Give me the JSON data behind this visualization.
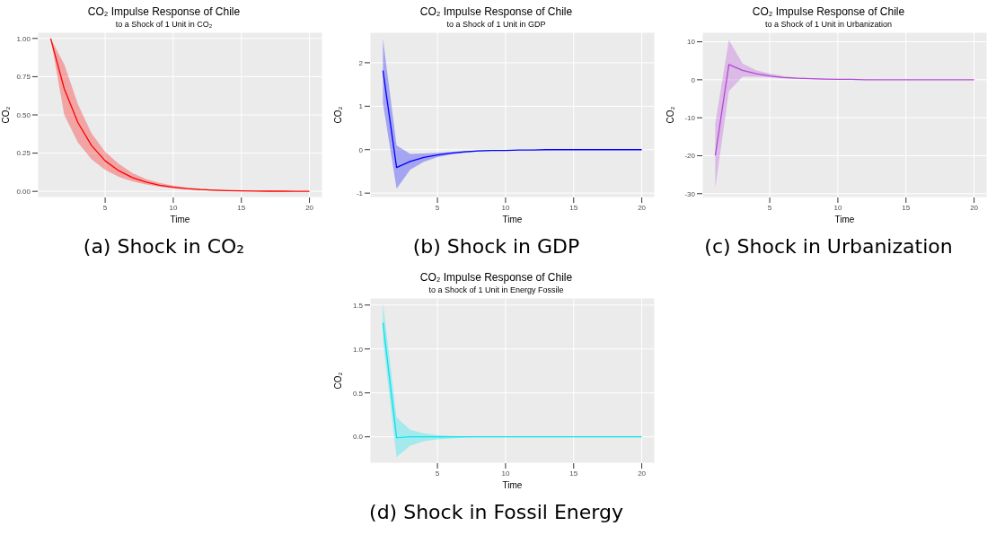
{
  "chart_data": [
    {
      "type": "line",
      "title": "CO₂ Impulse Response of Chile",
      "subtitle": "to a Shock of 1 Unit in CO₂",
      "xlabel": "Time",
      "ylabel": "CO₂",
      "annotations": [
        "(a) Shock in CO₂"
      ],
      "grid": true,
      "xlim": [
        0.05,
        20.95
      ],
      "xticks": [
        5,
        10,
        15,
        20
      ],
      "ylim": [
        -0.04,
        1.04
      ],
      "yticks": [
        {
          "value": 0,
          "label": "0.00"
        },
        {
          "value": 0.25,
          "label": "0.25"
        },
        {
          "value": 0.5,
          "label": "0.50"
        },
        {
          "value": 0.75,
          "label": "0.75"
        },
        {
          "value": 1,
          "label": "1.00"
        }
      ],
      "x": [
        1,
        2,
        3,
        4,
        5,
        6,
        7,
        8,
        9,
        10,
        11,
        12,
        13,
        14,
        15,
        16,
        17,
        18,
        19,
        20
      ],
      "series": [
        {
          "color": "#ff0000",
          "values": [
            1.0,
            0.67,
            0.45,
            0.3,
            0.2,
            0.135,
            0.09,
            0.06,
            0.04,
            0.027,
            0.018,
            0.012,
            0.008,
            0.005,
            0.003,
            0.002,
            0.001,
            0.001,
            0,
            0
          ],
          "lower": [
            1.0,
            0.5,
            0.32,
            0.21,
            0.14,
            0.095,
            0.065,
            0.045,
            0.03,
            0.02,
            0.013,
            0.008,
            0.005,
            0.003,
            0.002,
            0.001,
            0,
            0,
            0,
            0
          ],
          "upper": [
            1.0,
            0.83,
            0.57,
            0.38,
            0.26,
            0.18,
            0.12,
            0.08,
            0.055,
            0.038,
            0.025,
            0.017,
            0.011,
            0.007,
            0.004,
            0.003,
            0.002,
            0.001,
            0,
            0
          ]
        }
      ]
    },
    {
      "type": "line",
      "title": "CO₂ Impulse Response of Chile",
      "subtitle": "to a Shock of 1 Unit in GDP",
      "xlabel": "Time",
      "ylabel": "CO₂",
      "annotations": [
        "(b) Shock in GDP"
      ],
      "grid": true,
      "xlim": [
        0.05,
        20.95
      ],
      "xticks": [
        5,
        10,
        15,
        20
      ],
      "ylim": [
        -1.1,
        2.7
      ],
      "yticks": [
        -1,
        0,
        1,
        2
      ],
      "x": [
        1,
        2,
        3,
        4,
        5,
        6,
        7,
        8,
        9,
        10,
        11,
        12,
        13,
        14,
        15,
        16,
        17,
        18,
        19,
        20
      ],
      "series": [
        {
          "color": "#0000ff",
          "values": [
            1.82,
            -0.41,
            -0.27,
            -0.18,
            -0.12,
            -0.08,
            -0.05,
            -0.03,
            -0.02,
            -0.02,
            -0.01,
            -0.01,
            0,
            0,
            0,
            0,
            0,
            0,
            0,
            0
          ],
          "lower": [
            1.07,
            -0.9,
            -0.46,
            -0.28,
            -0.17,
            -0.11,
            -0.07,
            -0.04,
            -0.025,
            -0.02,
            -0.012,
            -0.008,
            -0.004,
            -0.002,
            0,
            0,
            0,
            0,
            0,
            0
          ],
          "upper": [
            2.55,
            0.1,
            -0.1,
            -0.09,
            -0.07,
            -0.05,
            -0.03,
            -0.02,
            -0.01,
            -0.008,
            -0.005,
            -0.002,
            0,
            0,
            0,
            0,
            0,
            0,
            0,
            0
          ]
        }
      ]
    },
    {
      "type": "line",
      "title": "CO₂ Impulse Response of Chile",
      "subtitle": "to a Shock of 1 Unit in Urbanization",
      "xlabel": "Time",
      "ylabel": "CO₂",
      "annotations": [
        "(c) Shock in Urbanization"
      ],
      "grid": true,
      "xlim": [
        0.05,
        20.95
      ],
      "xticks": [
        5,
        10,
        15,
        20
      ],
      "ylim": [
        -31,
        12.5
      ],
      "yticks": [
        -30,
        -20,
        -10,
        0,
        10
      ],
      "x": [
        1,
        2,
        3,
        4,
        5,
        6,
        7,
        8,
        9,
        10,
        11,
        12,
        13,
        14,
        15,
        16,
        17,
        18,
        19,
        20
      ],
      "series": [
        {
          "color": "#b548d6",
          "values": [
            -20,
            4,
            2.5,
            1.6,
            1.0,
            0.6,
            0.4,
            0.3,
            0.2,
            0.1,
            0.1,
            0,
            0,
            0,
            0,
            0,
            0,
            0,
            0,
            0
          ],
          "lower": [
            -28.5,
            -3,
            0.8,
            0.8,
            0.6,
            0.4,
            0.3,
            0.2,
            0.1,
            0.07,
            0.04,
            0.02,
            0,
            0,
            0,
            0,
            0,
            0,
            0,
            0
          ],
          "upper": [
            -11.5,
            10.5,
            4.3,
            2.5,
            1.6,
            1.0,
            0.6,
            0.4,
            0.25,
            0.15,
            0.1,
            0.06,
            0,
            0,
            0,
            0,
            0,
            0,
            0,
            0
          ]
        }
      ]
    },
    {
      "type": "line",
      "title": "CO₂ Impulse Response of Chile",
      "subtitle": "to a Shock of 1 Unit in Energy Fossile",
      "xlabel": "Time",
      "ylabel": "CO₂",
      "annotations": [
        "(d) Shock in Fossil Energy"
      ],
      "grid": true,
      "xlim": [
        0.05,
        20.95
      ],
      "xticks": [
        5,
        10,
        15,
        20
      ],
      "ylim": [
        -0.3,
        1.58
      ],
      "yticks": [
        {
          "value": 0,
          "label": "0.0"
        },
        {
          "value": 0.5,
          "label": "0.5"
        },
        {
          "value": 1,
          "label": "1.0"
        },
        {
          "value": 1.5,
          "label": "1.5"
        }
      ],
      "x": [
        1,
        2,
        3,
        4,
        5,
        6,
        7,
        8,
        9,
        10,
        11,
        12,
        13,
        14,
        15,
        16,
        17,
        18,
        19,
        20
      ],
      "series": [
        {
          "color": "#00e5ee",
          "values": [
            1.3,
            -0.01,
            0,
            0,
            0,
            0,
            0,
            0,
            0,
            0,
            0,
            0,
            0,
            0,
            0,
            0,
            0,
            0,
            0,
            0
          ],
          "lower": [
            1.1,
            -0.23,
            -0.1,
            -0.05,
            -0.03,
            -0.02,
            -0.01,
            0,
            0,
            0,
            0,
            0,
            0,
            0,
            0,
            0,
            0,
            0,
            0,
            0
          ],
          "upper": [
            1.53,
            0.22,
            0.08,
            0.04,
            0.02,
            0.01,
            0.005,
            0,
            0,
            0,
            0,
            0,
            0,
            0,
            0,
            0,
            0,
            0,
            0,
            0
          ]
        }
      ]
    }
  ]
}
